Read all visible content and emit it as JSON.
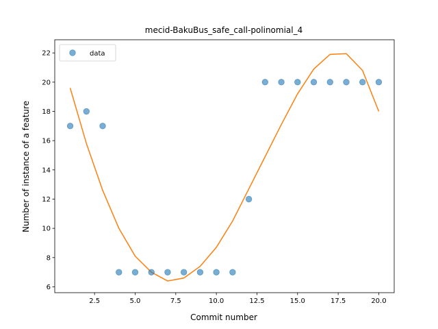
{
  "chart_data": {
    "type": "scatter",
    "title": "mecid-BakuBus_safe_call-polinomial_4",
    "xlabel": "Commit number",
    "ylabel": "Number of instance of a feature",
    "xlim": [
      0.05,
      20.95
    ],
    "ylim": [
      5.6,
      22.9
    ],
    "xticks": [
      2.5,
      5.0,
      7.5,
      10.0,
      12.5,
      15.0,
      17.5,
      20.0
    ],
    "xtick_labels": [
      "2.5",
      "5.0",
      "7.5",
      "10.0",
      "12.5",
      "15.0",
      "17.5",
      "20.0"
    ],
    "yticks": [
      6,
      8,
      10,
      12,
      14,
      16,
      18,
      20,
      22
    ],
    "ytick_labels": [
      "6",
      "8",
      "10",
      "12",
      "14",
      "16",
      "18",
      "20",
      "22"
    ],
    "grid": false,
    "legend_position": "top-left",
    "series": [
      {
        "name": "data",
        "kind": "scatter",
        "color": "#1f77b4",
        "x": [
          1,
          2,
          3,
          4,
          5,
          6,
          7,
          8,
          9,
          10,
          11,
          12,
          13,
          14,
          15,
          16,
          17,
          18,
          19,
          20
        ],
        "y": [
          17,
          18,
          17,
          7,
          7,
          7,
          7,
          7,
          7,
          7,
          7,
          12,
          20,
          20,
          20,
          20,
          20,
          20,
          20,
          20
        ]
      },
      {
        "kind": "line",
        "color": "#ff7f0e",
        "x": [
          1,
          2,
          3,
          4,
          5,
          6,
          7,
          8,
          9,
          10,
          11,
          12,
          13,
          14,
          15,
          16,
          17,
          18,
          19,
          20
        ],
        "y": [
          19.6,
          15.8,
          12.6,
          10.0,
          8.1,
          7.0,
          6.4,
          6.6,
          7.4,
          8.7,
          10.5,
          12.7,
          14.9,
          17.1,
          19.2,
          20.9,
          21.9,
          21.95,
          20.8,
          18.0
        ]
      }
    ]
  }
}
